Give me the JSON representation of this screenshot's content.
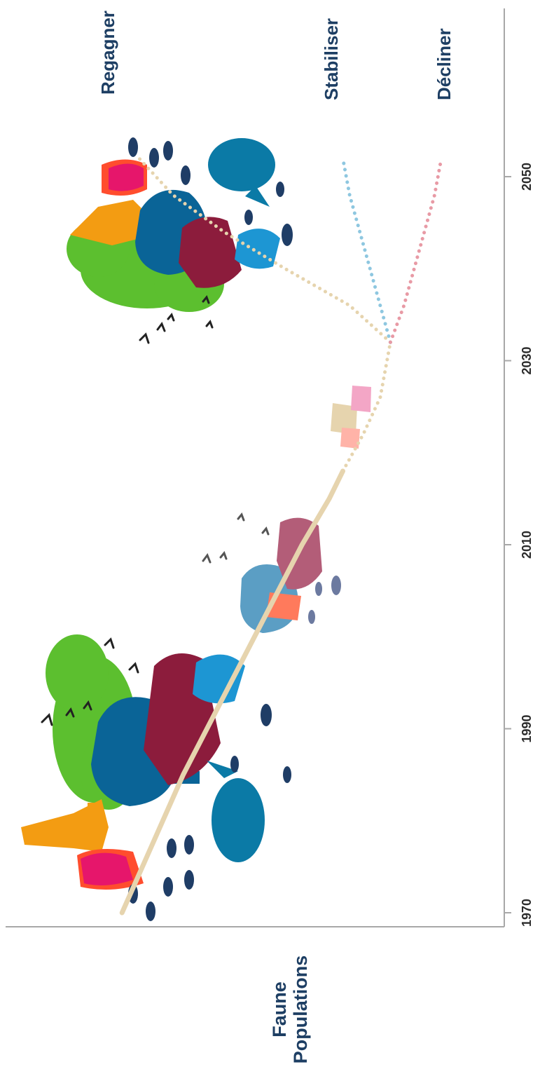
{
  "chart_data": {
    "type": "line",
    "title": "",
    "ylabel_lines": [
      "Faune",
      "Populations"
    ],
    "xlabel": "",
    "x_ticks": [
      "1970",
      "1990",
      "2010",
      "2030",
      "2050"
    ],
    "xlim": [
      1967,
      2055
    ],
    "ylim": [
      0,
      100
    ],
    "grid": false,
    "legend": "none",
    "series": [
      {
        "name": "",
        "style": "solid",
        "color": "#e6d4ae",
        "x": [
          1970,
          1975,
          1980,
          1985,
          1990,
          1995,
          2000,
          2005,
          2010,
          2015,
          2018
        ],
        "y": [
          95,
          89,
          83,
          77,
          70,
          63,
          56,
          49,
          42,
          34,
          30
        ]
      },
      {
        "name": "",
        "style": "dotted",
        "color": "#e6d4ae",
        "x": [
          2018,
          2022,
          2026,
          2030,
          2032
        ],
        "y": [
          30,
          24,
          19,
          17,
          16
        ]
      },
      {
        "name": "Regagner",
        "style": "dotted",
        "color": "#e6d4ae",
        "x": [
          2032,
          2036,
          2040,
          2044,
          2048,
          2052
        ],
        "y": [
          16,
          28,
          47,
          65,
          80,
          90
        ]
      },
      {
        "name": "Stabiliser",
        "style": "dotted",
        "color": "#8ec7e0",
        "x": [
          2032,
          2036,
          2040,
          2044,
          2048,
          2052
        ],
        "y": [
          16,
          19,
          22,
          25,
          28,
          30
        ]
      },
      {
        "name": "Décliner",
        "style": "dotted",
        "color": "#e89aa5",
        "x": [
          2032,
          2036,
          2040,
          2044,
          2048,
          2052
        ],
        "y": [
          16,
          12,
          9,
          6,
          3,
          1
        ]
      }
    ],
    "scenario_labels": [
      "Regagner",
      "Stabiliser",
      "Décliner"
    ]
  },
  "colors": {
    "axis": "#a8a8a8",
    "label": "#1d3e63",
    "tree": "#5cbf2f",
    "elephant": "#0a6497",
    "bison": "#8c1c3c",
    "giraffe": "#f39c12",
    "lion": "#c99a3a",
    "seal": "#1d96d3",
    "rhino": "#ff4d2e",
    "pig": "#e6166b",
    "whale": "#0b7aa6",
    "fish": "#1f3d66",
    "bird": "#222222"
  },
  "icons": [
    "tree-icon",
    "elephant-icon",
    "bison-icon",
    "giraffe-icon",
    "whale-icon",
    "fish-icon",
    "bird-icon",
    "deer-icon",
    "pig-icon"
  ]
}
